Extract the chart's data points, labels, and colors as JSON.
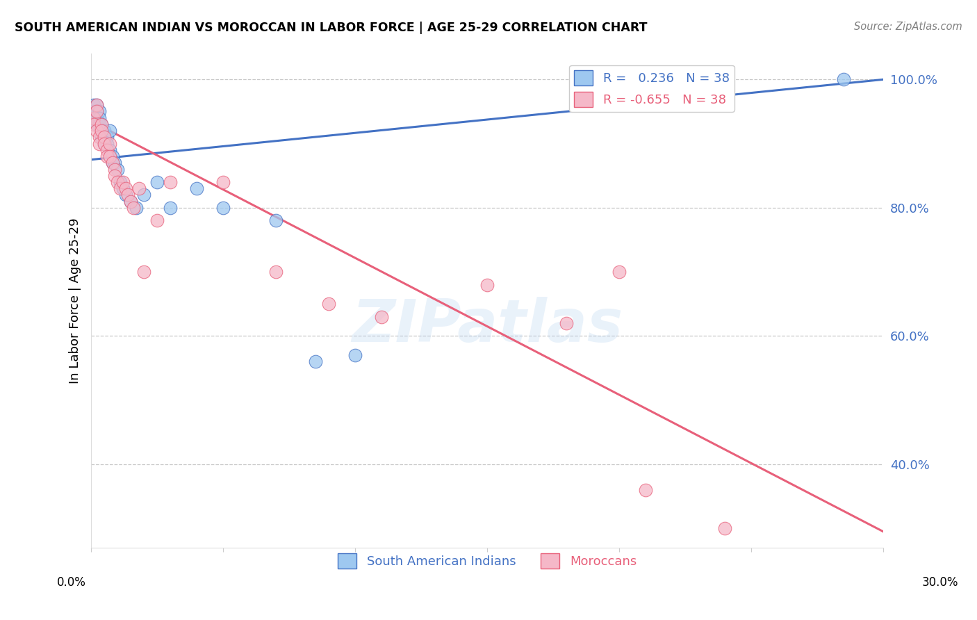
{
  "title": "SOUTH AMERICAN INDIAN VS MOROCCAN IN LABOR FORCE | AGE 25-29 CORRELATION CHART",
  "source": "Source: ZipAtlas.com",
  "ylabel": "In Labor Force | Age 25-29",
  "x_lim": [
    0.0,
    0.3
  ],
  "y_lim": [
    0.27,
    1.04
  ],
  "R_blue": 0.236,
  "N_blue": 38,
  "R_pink": -0.655,
  "N_pink": 38,
  "blue_color": "#9EC8F0",
  "pink_color": "#F5B8C8",
  "blue_line_color": "#4472C4",
  "pink_line_color": "#E8607A",
  "grid_color": "#C8C8C8",
  "y_tick_positions": [
    0.4,
    0.6,
    0.8,
    1.0
  ],
  "y_tick_labels": [
    "40.0%",
    "60.0%",
    "80.0%",
    "100.0%"
  ],
  "blue_dots_x": [
    0.001,
    0.001,
    0.002,
    0.002,
    0.002,
    0.002,
    0.003,
    0.003,
    0.003,
    0.004,
    0.004,
    0.004,
    0.005,
    0.005,
    0.005,
    0.006,
    0.006,
    0.007,
    0.007,
    0.008,
    0.008,
    0.009,
    0.01,
    0.011,
    0.012,
    0.013,
    0.015,
    0.017,
    0.02,
    0.025,
    0.03,
    0.04,
    0.05,
    0.07,
    0.085,
    0.1,
    0.24,
    0.285
  ],
  "blue_dots_y": [
    0.96,
    0.95,
    0.96,
    0.95,
    0.94,
    0.93,
    0.95,
    0.94,
    0.93,
    0.93,
    0.92,
    0.91,
    0.92,
    0.91,
    0.9,
    0.91,
    0.9,
    0.92,
    0.89,
    0.88,
    0.87,
    0.87,
    0.86,
    0.84,
    0.83,
    0.82,
    0.81,
    0.8,
    0.82,
    0.84,
    0.8,
    0.83,
    0.8,
    0.78,
    0.56,
    0.57,
    0.98,
    1.0
  ],
  "pink_dots_x": [
    0.001,
    0.001,
    0.002,
    0.002,
    0.002,
    0.003,
    0.003,
    0.004,
    0.004,
    0.005,
    0.005,
    0.006,
    0.006,
    0.007,
    0.007,
    0.008,
    0.009,
    0.009,
    0.01,
    0.011,
    0.012,
    0.013,
    0.014,
    0.015,
    0.016,
    0.018,
    0.02,
    0.025,
    0.03,
    0.05,
    0.07,
    0.09,
    0.11,
    0.15,
    0.18,
    0.2,
    0.21,
    0.24
  ],
  "pink_dots_y": [
    0.94,
    0.93,
    0.96,
    0.95,
    0.92,
    0.91,
    0.9,
    0.93,
    0.92,
    0.91,
    0.9,
    0.89,
    0.88,
    0.9,
    0.88,
    0.87,
    0.86,
    0.85,
    0.84,
    0.83,
    0.84,
    0.83,
    0.82,
    0.81,
    0.8,
    0.83,
    0.7,
    0.78,
    0.84,
    0.84,
    0.7,
    0.65,
    0.63,
    0.68,
    0.62,
    0.7,
    0.36,
    0.3
  ],
  "blue_line_x": [
    0.0,
    0.3
  ],
  "blue_line_y": [
    0.875,
    1.0
  ],
  "pink_line_x": [
    0.0,
    0.3
  ],
  "pink_line_y": [
    0.935,
    0.295
  ]
}
